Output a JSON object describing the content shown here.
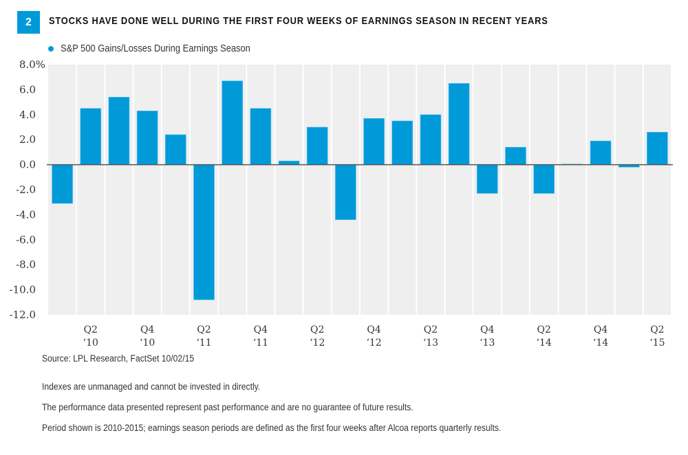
{
  "figure": {
    "number": "2",
    "title": "STOCKS HAVE DONE WELL DURING THE FIRST FOUR WEEKS OF EARNINGS SEASON IN RECENT YEARS"
  },
  "colors": {
    "bar": "#009ad9",
    "plot_background": "#efefef",
    "zero_line": "#555555"
  },
  "chart_data": {
    "type": "bar",
    "title": "STOCKS HAVE DONE WELL DURING THE FIRST FOUR WEEKS OF EARNINGS SEASON IN RECENT YEARS",
    "xlabel": "",
    "ylabel": "",
    "ylim": [
      -12,
      8
    ],
    "yticks": [
      8,
      6,
      4,
      2,
      0,
      -2,
      -4,
      -6,
      -8,
      -10,
      -12
    ],
    "ytick_labels": [
      "8.0%",
      "6.0",
      "4.0",
      "2.0",
      "0.0",
      "-2.0",
      "-4.0",
      "-6.0",
      "-8.0",
      "-10.0",
      "-12.0"
    ],
    "grid": "vertical column bands",
    "legend": {
      "position": "top-left",
      "entries": [
        "S&P 500 Gains/Losses During Earnings Season"
      ]
    },
    "categories": [
      "Q1 '10",
      "Q2 '10",
      "Q3 '10",
      "Q4 '10",
      "Q1 '11",
      "Q2 '11",
      "Q3 '11",
      "Q4 '11",
      "Q1 '12",
      "Q2 '12",
      "Q3 '12",
      "Q4 '12",
      "Q1 '13",
      "Q2 '13",
      "Q3 '13",
      "Q4 '13",
      "Q1 '14",
      "Q2 '14",
      "Q3 '14",
      "Q4 '14",
      "Q1 '15",
      "Q2 '15"
    ],
    "xtick_labels": [
      {
        "index": 1,
        "line1": "Q2",
        "line2": "‘10"
      },
      {
        "index": 3,
        "line1": "Q4",
        "line2": "‘10"
      },
      {
        "index": 5,
        "line1": "Q2",
        "line2": "‘11"
      },
      {
        "index": 7,
        "line1": "Q4",
        "line2": "‘11"
      },
      {
        "index": 9,
        "line1": "Q2",
        "line2": "‘12"
      },
      {
        "index": 11,
        "line1": "Q4",
        "line2": "‘12"
      },
      {
        "index": 13,
        "line1": "Q2",
        "line2": "‘13"
      },
      {
        "index": 15,
        "line1": "Q4",
        "line2": "‘13"
      },
      {
        "index": 17,
        "line1": "Q2",
        "line2": "‘14"
      },
      {
        "index": 19,
        "line1": "Q4",
        "line2": "‘14"
      },
      {
        "index": 21,
        "line1": "Q2",
        "line2": "‘15"
      }
    ],
    "series": [
      {
        "name": "S&P 500 Gains/Losses During Earnings Season",
        "values": [
          -3.1,
          4.5,
          5.4,
          4.3,
          2.4,
          -10.8,
          6.7,
          4.5,
          0.3,
          3.0,
          -4.4,
          3.7,
          3.5,
          4.0,
          6.5,
          -2.3,
          1.4,
          -2.3,
          0.05,
          1.9,
          -0.2,
          2.6
        ]
      }
    ]
  },
  "footnotes": {
    "source": "Source: LPL Research, FactSet   10/02/15",
    "lines": [
      "Indexes are unmanaged and cannot be invested in directly.",
      "The performance data presented represent past performance and are no guarantee of future results.",
      "Period shown is 2010-2015; earnings season periods are defined as the first four weeks after Alcoa reports quarterly results."
    ]
  }
}
